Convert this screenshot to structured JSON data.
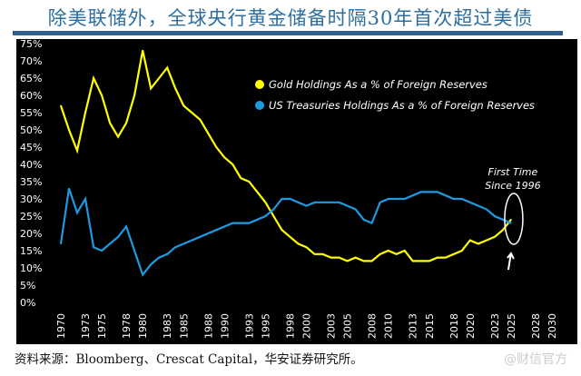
{
  "title": "除美联储外，全球央行黄金储备时隔30年首次超过美债",
  "source": "资料来源：Bloomberg、Crescat Capital，华安证券研究所。",
  "watermark": "@财信官方",
  "chart_data": {
    "type": "line",
    "title": "除美联储外，全球央行黄金储备时隔30年首次超过美债",
    "xlabel": "",
    "ylabel": "",
    "ylim": [
      0,
      75
    ],
    "yticks": [
      "0%",
      "5%",
      "10%",
      "15%",
      "20%",
      "25%",
      "30%",
      "35%",
      "40%",
      "45%",
      "50%",
      "55%",
      "60%",
      "65%",
      "70%",
      "75%"
    ],
    "xticks": [
      "1970",
      "1973",
      "1975",
      "1978",
      "1980",
      "1983",
      "1985",
      "1988",
      "1990",
      "1993",
      "1995",
      "1998",
      "2000",
      "2003",
      "2005",
      "2008",
      "2010",
      "2013",
      "2015",
      "2018",
      "2020",
      "2023",
      "2025",
      "2028",
      "2030"
    ],
    "xlim": [
      1970,
      2030
    ],
    "legend_placement": "top-right",
    "x": [
      1970,
      1971,
      1972,
      1973,
      1974,
      1975,
      1976,
      1977,
      1978,
      1979,
      1980,
      1981,
      1982,
      1983,
      1984,
      1985,
      1986,
      1987,
      1988,
      1989,
      1990,
      1991,
      1992,
      1993,
      1994,
      1995,
      1996,
      1997,
      1998,
      1999,
      2000,
      2001,
      2002,
      2003,
      2004,
      2005,
      2006,
      2007,
      2008,
      2009,
      2010,
      2011,
      2012,
      2013,
      2014,
      2015,
      2016,
      2017,
      2018,
      2019,
      2020,
      2021,
      2022,
      2023,
      2024,
      2025
    ],
    "series": [
      {
        "name": "Gold Holdings As a % of Foreign Reserves",
        "color": "#ffff00",
        "values": [
          57,
          50,
          44,
          55,
          65,
          60,
          52,
          48,
          52,
          60,
          73,
          62,
          65,
          68,
          62,
          57,
          55,
          53,
          49,
          45,
          42,
          40,
          36,
          35,
          32,
          29,
          25,
          21,
          19,
          17,
          16,
          14,
          14,
          13,
          13,
          12,
          13,
          12,
          12,
          14,
          15,
          14,
          15,
          12,
          12,
          12,
          13,
          13,
          14,
          15,
          18,
          17,
          18,
          19,
          21,
          24
        ]
      },
      {
        "name": "US Treasuries Holdings As a % of Foreign Reserves",
        "color": "#1e9be0",
        "values": [
          17,
          33,
          26,
          30,
          16,
          15,
          17,
          19,
          22,
          15,
          8,
          11,
          13,
          14,
          16,
          17,
          18,
          19,
          20,
          21,
          22,
          23,
          23,
          23,
          24,
          25,
          27,
          30,
          30,
          29,
          28,
          29,
          29,
          29,
          29,
          28,
          27,
          24,
          23,
          29,
          30,
          30,
          30,
          31,
          32,
          32,
          32,
          31,
          30,
          30,
          29,
          28,
          27,
          25,
          24,
          23
        ]
      }
    ],
    "annotation": {
      "text_line1": "First Time",
      "text_line2": "Since 1996",
      "year": 2025
    }
  }
}
